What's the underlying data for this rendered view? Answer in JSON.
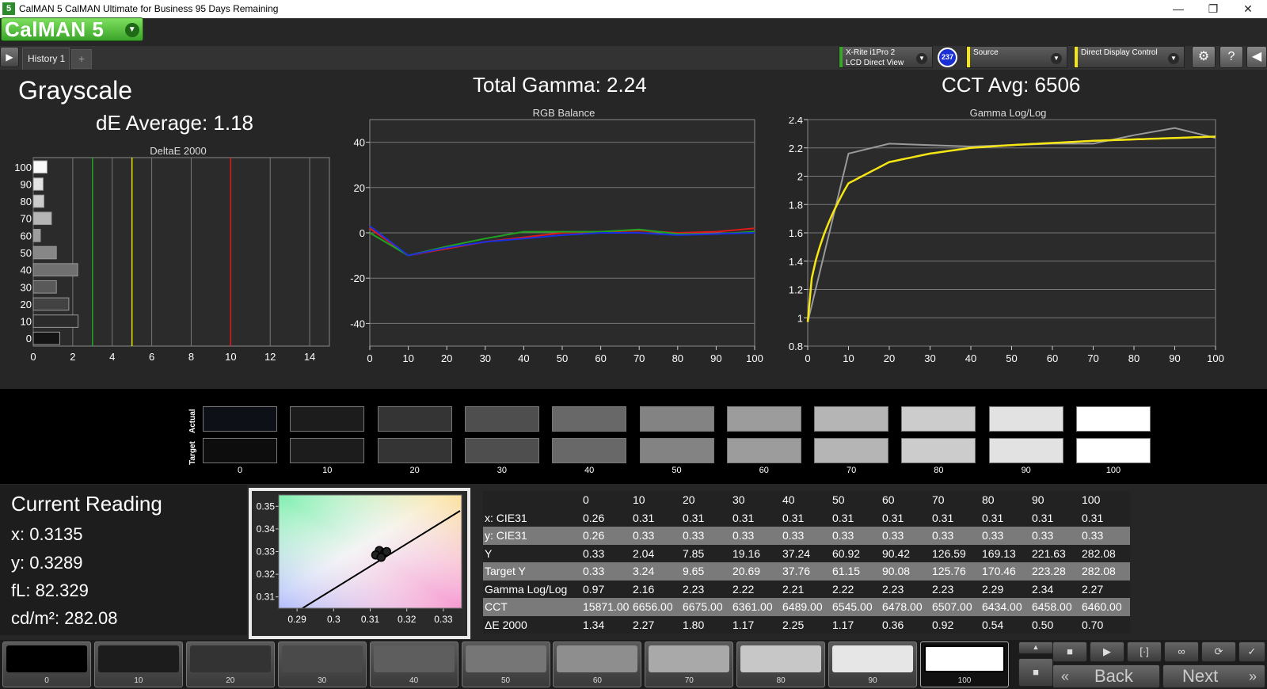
{
  "window": {
    "icon_text": "5",
    "title": "CalMAN 5 CalMAN Ultimate for Business 95 Days Remaining",
    "minimize": "—",
    "maximize": "❐",
    "close": "✕"
  },
  "header": {
    "logo": "CalMAN 5",
    "tab": "History 1",
    "meter": {
      "line1": "X-Rite i1Pro 2",
      "line2": "LCD Direct View",
      "badge": "237"
    },
    "source": "Source",
    "display": "Direct Display Control"
  },
  "colors": {
    "accent_green": "#3aa52a",
    "accent_yellow": "#f5e614",
    "badge_blue": "#1a2fd4"
  },
  "summary": {
    "section_title": "Grayscale",
    "de_average": "dE Average: 1.18",
    "total_gamma": "Total Gamma: 2.24",
    "cct_avg": "CCT Avg: 6506"
  },
  "chart_data": [
    {
      "type": "bar",
      "title": "DeltaE 2000",
      "orientation": "horizontal",
      "categories": [
        "0",
        "10",
        "20",
        "30",
        "40",
        "50",
        "60",
        "70",
        "80",
        "90",
        "100"
      ],
      "values": [
        1.34,
        2.27,
        1.8,
        1.17,
        2.25,
        1.17,
        0.36,
        0.92,
        0.54,
        0.5,
        0.7
      ],
      "xlim": [
        0,
        15
      ],
      "xticks": [
        "0",
        "2",
        "4",
        "6",
        "8",
        "10",
        "12",
        "14"
      ],
      "threshold_lines": [
        {
          "value": 3,
          "color": "#1fa51f"
        },
        {
          "value": 5,
          "color": "#e6e600"
        },
        {
          "value": 10,
          "color": "#e01a1a"
        }
      ]
    },
    {
      "type": "line",
      "title": "RGB Balance",
      "x": [
        0,
        10,
        20,
        30,
        40,
        50,
        60,
        70,
        80,
        90,
        100
      ],
      "xticks": [
        "0",
        "10",
        "20",
        "30",
        "40",
        "50",
        "60",
        "70",
        "80",
        "90",
        "100"
      ],
      "yticks": [
        "40",
        "20",
        "0",
        "-20",
        "-40"
      ],
      "ylim": [
        -50,
        50
      ],
      "series": [
        {
          "color": "#e01a1a",
          "values": [
            2,
            -10,
            -7,
            -4,
            -2,
            0,
            0.5,
            1,
            0,
            0.5,
            2
          ]
        },
        {
          "color": "#1fa51f",
          "values": [
            0,
            -10,
            -6,
            -2.5,
            0.5,
            0.5,
            0.5,
            1.5,
            -0.5,
            -0.5,
            0.5
          ]
        },
        {
          "color": "#1a2fe0",
          "values": [
            3,
            -10,
            -6.5,
            -4,
            -2.5,
            -1,
            0,
            0,
            -1,
            -0.5,
            0
          ]
        }
      ]
    },
    {
      "type": "line",
      "title": "Gamma Log/Log",
      "x": [
        0,
        10,
        20,
        30,
        40,
        50,
        60,
        70,
        80,
        90,
        100
      ],
      "xticks": [
        "0",
        "10",
        "20",
        "30",
        "40",
        "50",
        "60",
        "70",
        "80",
        "90",
        "100"
      ],
      "yticks": [
        "2.4",
        "2.2",
        "2",
        "1.8",
        "1.6",
        "1.4",
        "1.2",
        "1",
        "0.8"
      ],
      "ylim": [
        0.8,
        2.4
      ],
      "series": [
        {
          "color": "#9a9a9a",
          "values": [
            0.97,
            2.16,
            2.23,
            2.22,
            2.21,
            2.22,
            2.23,
            2.23,
            2.29,
            2.34,
            2.27
          ]
        },
        {
          "color": "#f5e614",
          "curve": "target",
          "values": [
            0.97,
            1.95,
            2.1,
            2.16,
            2.2,
            2.22,
            2.235,
            2.25,
            2.26,
            2.27,
            2.28
          ]
        }
      ]
    },
    {
      "type": "scatter",
      "title": "CIE xy",
      "xticks": [
        "0.29",
        "0.3",
        "0.31",
        "0.32",
        "0.33"
      ],
      "yticks": [
        "0.35",
        "0.34",
        "0.33",
        "0.32",
        "0.31"
      ],
      "xlim": [
        0.285,
        0.335
      ],
      "ylim": [
        0.305,
        0.355
      ],
      "points": [
        [
          0.3135,
          0.3289
        ],
        [
          0.3125,
          0.3305
        ],
        [
          0.314,
          0.3295
        ],
        [
          0.3115,
          0.3285
        ],
        [
          0.313,
          0.3275
        ],
        [
          0.3145,
          0.33
        ]
      ]
    }
  ],
  "swatches": {
    "actual_label": "Actual",
    "target_label": "Target",
    "levels": [
      "0",
      "10",
      "20",
      "30",
      "40",
      "50",
      "60",
      "70",
      "80",
      "90",
      "100"
    ],
    "actual_colors": [
      "#0d1117",
      "#1c1c1c",
      "#343434",
      "#4e4e4e",
      "#686868",
      "#838383",
      "#9c9c9c",
      "#b5b5b5",
      "#cccccc",
      "#e2e2e2",
      "#ffffff"
    ],
    "target_colors": [
      "#0d0d0d",
      "#1c1c1c",
      "#343434",
      "#4e4e4e",
      "#686868",
      "#838383",
      "#9c9c9c",
      "#b5b5b5",
      "#cccccc",
      "#e2e2e2",
      "#ffffff"
    ]
  },
  "reading": {
    "title": "Current Reading",
    "x": "x: 0.3135",
    "y": "y: 0.3289",
    "fl": "fL: 82.329",
    "cdm2": "cd/m²: 282.08"
  },
  "table": {
    "columns": [
      "",
      "0",
      "10",
      "20",
      "30",
      "40",
      "50",
      "60",
      "70",
      "80",
      "90",
      "100"
    ],
    "rows": [
      [
        "x: CIE31",
        "0.26",
        "0.31",
        "0.31",
        "0.31",
        "0.31",
        "0.31",
        "0.31",
        "0.31",
        "0.31",
        "0.31",
        "0.31"
      ],
      [
        "y: CIE31",
        "0.26",
        "0.33",
        "0.33",
        "0.33",
        "0.33",
        "0.33",
        "0.33",
        "0.33",
        "0.33",
        "0.33",
        "0.33"
      ],
      [
        "Y",
        "0.33",
        "2.04",
        "7.85",
        "19.16",
        "37.24",
        "60.92",
        "90.42",
        "126.59",
        "169.13",
        "221.63",
        "282.08"
      ],
      [
        "Target Y",
        "0.33",
        "3.24",
        "9.65",
        "20.69",
        "37.76",
        "61.15",
        "90.08",
        "125.76",
        "170.46",
        "223.28",
        "282.08"
      ],
      [
        "Gamma Log/Log",
        "0.97",
        "2.16",
        "2.23",
        "2.22",
        "2.21",
        "2.22",
        "2.23",
        "2.23",
        "2.29",
        "2.34",
        "2.27"
      ],
      [
        "CCT",
        "15871.00",
        "6656.00",
        "6675.00",
        "6361.00",
        "6489.00",
        "6545.00",
        "6478.00",
        "6507.00",
        "6434.00",
        "6458.00",
        "6460.00"
      ],
      [
        "ΔE 2000",
        "1.34",
        "2.27",
        "1.80",
        "1.17",
        "2.25",
        "1.17",
        "0.36",
        "0.92",
        "0.54",
        "0.50",
        "0.70"
      ]
    ]
  },
  "bottom": {
    "levels": [
      "0",
      "10",
      "20",
      "30",
      "40",
      "50",
      "60",
      "70",
      "80",
      "90",
      "100"
    ],
    "colors": [
      "#000000",
      "#1c1c1c",
      "#333333",
      "#4a4a4a",
      "#5e5e5e",
      "#767676",
      "#8e8e8e",
      "#a9a9a9",
      "#c7c7c7",
      "#e6e6e6",
      "#ffffff"
    ],
    "selected": "100",
    "back": "Back",
    "next": "Next"
  }
}
